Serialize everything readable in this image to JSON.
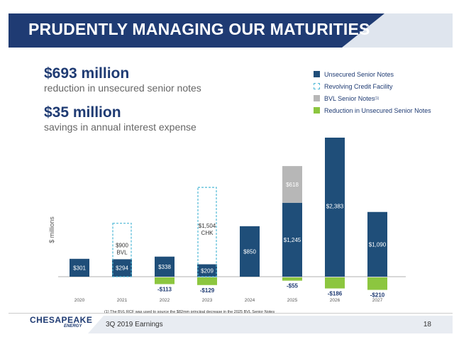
{
  "title": "PRUDENTLY MANAGING OUR MATURITIES",
  "stats": [
    {
      "big": "$693 million",
      "small": "reduction in unsecured senior notes"
    },
    {
      "big": "$35 million",
      "small": "savings in annual interest expense"
    }
  ],
  "legend": [
    {
      "label": "Unsecured Senior Notes",
      "style": "solid"
    },
    {
      "label": "Revolving Credit Facility",
      "style": "dashed"
    },
    {
      "label": "BVL Senior Notes",
      "sup": "(1)",
      "style": "gray"
    },
    {
      "label": "Reduction in Unsecured Senior Notes",
      "style": "green"
    }
  ],
  "colors": {
    "navy": "#1f4e79",
    "title_blue": "#1f3b73",
    "dashed": "#4db8d6",
    "gray": "#b7b7b7",
    "green": "#8cc63f"
  },
  "chart_data": {
    "type": "bar",
    "ylabel": "$ millions",
    "categories": [
      "2020",
      "2021",
      "2022",
      "2023",
      "2024",
      "2025",
      "2026",
      "2027"
    ],
    "series": [
      {
        "name": "Unsecured Senior Notes",
        "values": [
          301,
          294,
          338,
          209,
          850,
          1245,
          2383,
          1090
        ],
        "labels": [
          "$301",
          "$294",
          "$338",
          "$209",
          "$850",
          "$1,245",
          "$2,383",
          "$1,090"
        ]
      },
      {
        "name": "Revolving Credit Facility",
        "values": [
          0,
          900,
          0,
          1504,
          0,
          0,
          0,
          0
        ],
        "labels": [
          "",
          "$900\nBVL",
          "",
          "$1,504\nCHK",
          "",
          "",
          "",
          ""
        ]
      },
      {
        "name": "BVL Senior Notes",
        "values": [
          0,
          0,
          0,
          0,
          0,
          618,
          0,
          0
        ],
        "labels": [
          "",
          "",
          "",
          "",
          "",
          "$618",
          "",
          ""
        ]
      },
      {
        "name": "Reduction in Unsecured Senior Notes",
        "values": [
          0,
          0,
          -113,
          -129,
          0,
          -55,
          -186,
          -210
        ],
        "labels": [
          "",
          "",
          "-$113",
          "-$129",
          "",
          "-$55",
          "-$186",
          "-$210"
        ]
      }
    ]
  },
  "footnote": "(1)  The BVL RCF was used to source the $82mm principal decrease in the 2025 BVL Senior Notes",
  "footer": {
    "logo": "CHESAPEAKE",
    "logo_sub": "ENERGY",
    "text": "3Q 2019 Earnings",
    "page": "18"
  }
}
